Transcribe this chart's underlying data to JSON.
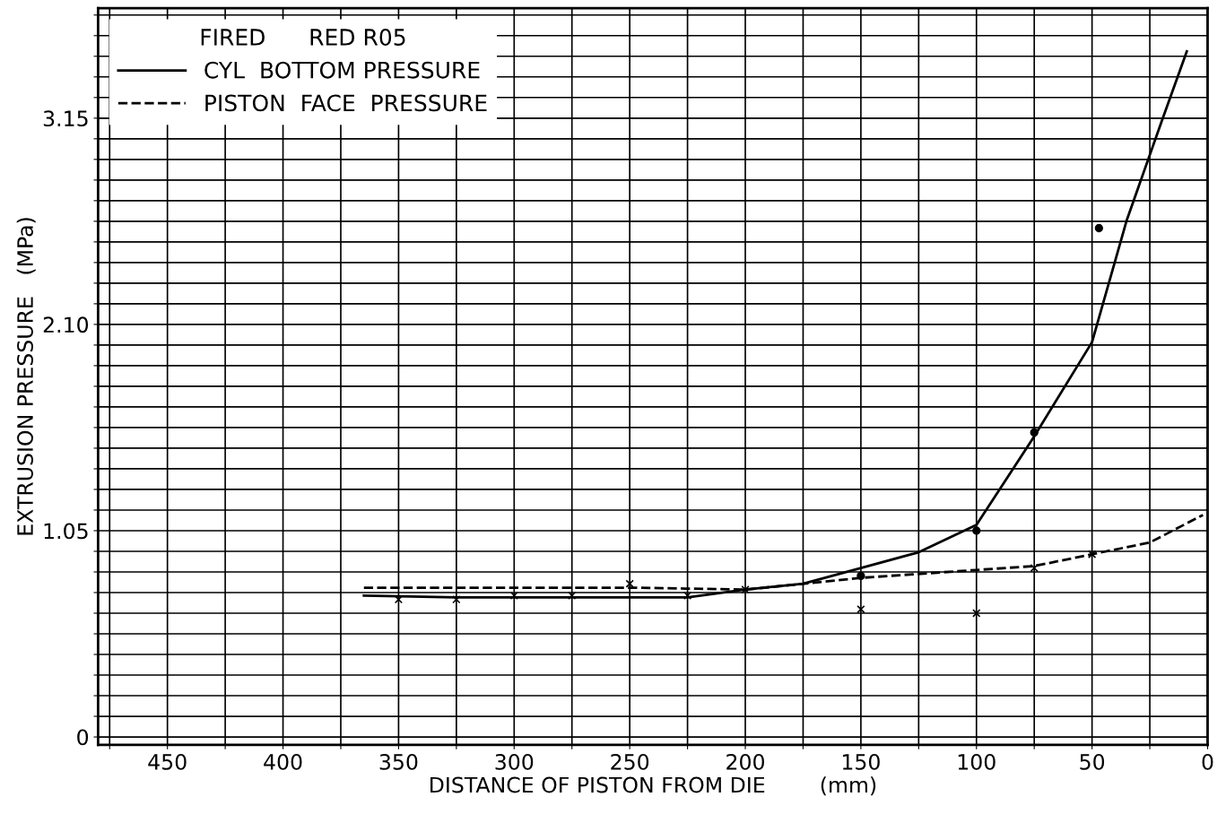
{
  "chart_data": {
    "type": "line",
    "xlabel": "DISTANCE OF PISTON FROM DIE        (mm)",
    "ylabel": "EXTRUSION PRESSURE   (MPa)",
    "legend_title": "FIRED      RED R05",
    "legend": "top left",
    "grid": true,
    "xlim": [
      480,
      0
    ],
    "ylim": [
      -0.04,
      3.71
    ],
    "xticks": [
      {
        "value": 475,
        "label": null
      },
      450,
      {
        "value": 425,
        "label": null
      },
      400,
      {
        "value": 375,
        "label": null
      },
      350,
      {
        "value": 325,
        "label": null
      },
      300,
      {
        "value": 275,
        "label": null
      },
      250,
      {
        "value": 225,
        "label": null
      },
      200,
      {
        "value": 175,
        "label": null
      },
      150,
      {
        "value": 125,
        "label": null
      },
      100,
      {
        "value": 75,
        "label": null
      },
      50,
      {
        "value": 25,
        "label": null
      },
      0
    ],
    "yticks": [
      {
        "value": 0,
        "label": "0"
      },
      {
        "value": 0.105,
        "label": null
      },
      {
        "value": 0.21,
        "label": null
      },
      {
        "value": 0.315,
        "label": null
      },
      {
        "value": 0.42,
        "label": null
      },
      {
        "value": 0.525,
        "label": null
      },
      {
        "value": 0.63,
        "label": null
      },
      {
        "value": 0.735,
        "label": null
      },
      {
        "value": 0.84,
        "label": null
      },
      {
        "value": 0.945,
        "label": null
      },
      {
        "value": 1.05,
        "label": "1.05"
      },
      {
        "value": 1.155,
        "label": null
      },
      {
        "value": 1.26,
        "label": null
      },
      {
        "value": 1.365,
        "label": null
      },
      {
        "value": 1.47,
        "label": null
      },
      {
        "value": 1.575,
        "label": null
      },
      {
        "value": 1.68,
        "label": null
      },
      {
        "value": 1.785,
        "label": null
      },
      {
        "value": 1.89,
        "label": null
      },
      {
        "value": 1.995,
        "label": null
      },
      {
        "value": 2.1,
        "label": "2.10"
      },
      {
        "value": 2.205,
        "label": null
      },
      {
        "value": 2.31,
        "label": null
      },
      {
        "value": 2.415,
        "label": null
      },
      {
        "value": 2.52,
        "label": null
      },
      {
        "value": 2.625,
        "label": null
      },
      {
        "value": 2.73,
        "label": null
      },
      {
        "value": 2.835,
        "label": null
      },
      {
        "value": 2.94,
        "label": null
      },
      {
        "value": 3.045,
        "label": null
      },
      {
        "value": 3.15,
        "label": "3.15"
      },
      {
        "value": 3.255,
        "label": null
      },
      {
        "value": 3.36,
        "label": null
      },
      {
        "value": 3.465,
        "label": null
      },
      {
        "value": 3.57,
        "label": null
      },
      {
        "value": 3.675,
        "label": null
      }
    ],
    "series": [
      {
        "name": "CYL  BOTTOM PRESSURE",
        "color": "#000000",
        "line_style": "solid",
        "x": [
          365,
          325,
          275,
          225,
          200,
          175,
          150,
          125,
          100,
          75,
          50,
          35,
          20,
          9
        ],
        "values": [
          0.72,
          0.71,
          0.71,
          0.71,
          0.75,
          0.78,
          0.86,
          0.94,
          1.08,
          1.53,
          2.01,
          2.63,
          3.13,
          3.49
        ]
      },
      {
        "name": "PISTON  FACE  PRESSURE",
        "color": "#000000",
        "line_style": "dashed",
        "x": [
          365,
          300,
          250,
          200,
          150,
          100,
          75,
          50,
          25,
          2
        ],
        "values": [
          0.76,
          0.76,
          0.76,
          0.75,
          0.81,
          0.85,
          0.87,
          0.93,
          0.99,
          1.13
        ]
      },
      {
        "type": "scatter",
        "marker": "cross",
        "color": "#000000",
        "x": [
          350,
          325,
          300,
          275,
          250,
          225,
          200,
          150,
          100,
          75,
          50
        ],
        "values": [
          0.7,
          0.7,
          0.72,
          0.72,
          0.78,
          0.72,
          0.75,
          0.65,
          0.63,
          0.86,
          0.93
        ]
      },
      {
        "type": "scatter",
        "marker": "circle",
        "color": "#000000",
        "x": [
          150,
          100,
          75,
          47
        ],
        "values": [
          0.82,
          1.05,
          1.55,
          2.59
        ]
      }
    ]
  }
}
